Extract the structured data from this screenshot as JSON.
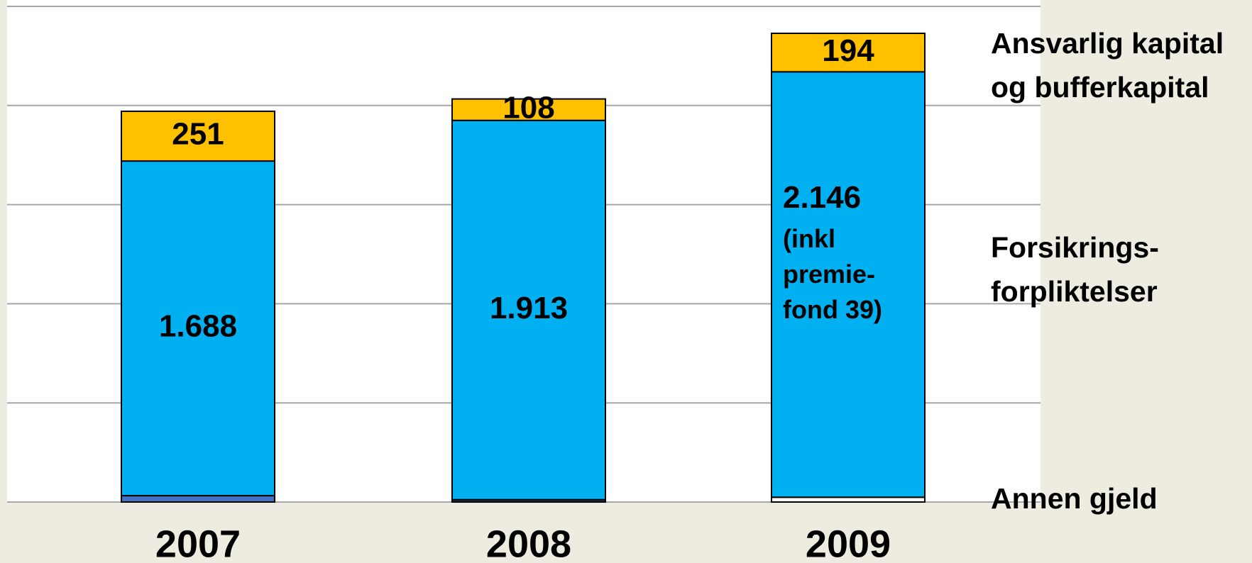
{
  "chart_data": {
    "type": "stacked_bar",
    "categories": [
      "2007",
      "2008",
      "2009"
    ],
    "ylim": [
      0,
      2500
    ],
    "yticks": [
      0,
      500,
      1000,
      1500,
      2000,
      2500
    ],
    "grid": true,
    "series": [
      {
        "name": "Annen gjeld",
        "color": "#4472c4",
        "colors": [
          "#4472c4",
          "#1f3864",
          "#ffffff"
        ],
        "values": [
          32,
          12,
          24
        ]
      },
      {
        "name": "Forsikrings-forpliktelser",
        "color": "#00b0f0",
        "values": [
          1688,
          1913,
          2146
        ],
        "value_labels": [
          "1.688",
          "1.913",
          "2.146"
        ]
      },
      {
        "name": "Ansvarlig kapital og bufferkapital",
        "color": "#ffc000",
        "values": [
          251,
          108,
          194
        ],
        "value_labels": [
          "251",
          "108",
          "194"
        ]
      }
    ],
    "annotations": [
      {
        "category": 2,
        "series": 1,
        "lines": [
          "(inkl",
          "premie-",
          "fond 39)"
        ]
      }
    ]
  }
}
